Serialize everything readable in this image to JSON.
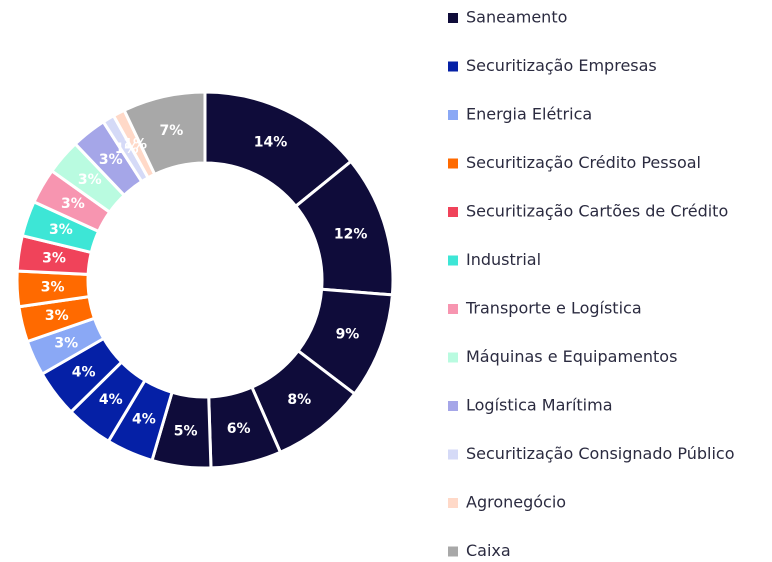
{
  "chart_data": {
    "type": "donut",
    "series": [
      {
        "name": "Saneamento",
        "color": "#0f0c3a",
        "values": [
          14,
          12,
          9,
          8,
          6,
          5
        ],
        "value_labels": [
          "14%",
          "12%",
          "9%",
          "8%",
          "6%",
          "5%"
        ]
      },
      {
        "name": "Securitização Empresas",
        "color": "#0520a6",
        "values": [
          4,
          4,
          4
        ],
        "value_labels": [
          "4%",
          "4%",
          "4%"
        ]
      },
      {
        "name": "Energia Elétrica",
        "color": "#8aa8f5",
        "values": [
          3
        ],
        "value_labels": [
          "3%"
        ]
      },
      {
        "name": "Securitização Crédito Pessoal",
        "color": "#ff6a00",
        "values": [
          3,
          3
        ],
        "value_labels": [
          "3%",
          "3%"
        ]
      },
      {
        "name": "Securitização Cartões de Crédito",
        "color": "#f0435a",
        "values": [
          3
        ],
        "value_labels": [
          "3%"
        ]
      },
      {
        "name": "Industrial",
        "color": "#3de6d6",
        "values": [
          3
        ],
        "value_labels": [
          "3%"
        ]
      },
      {
        "name": "Transporte e Logística",
        "color": "#f795b0",
        "values": [
          3
        ],
        "value_labels": [
          "3%"
        ]
      },
      {
        "name": "Máquinas e Equipamentos",
        "color": "#b9fbe0",
        "values": [
          3
        ],
        "value_labels": [
          "3%"
        ]
      },
      {
        "name": "Logística Marítima",
        "color": "#a5a6e8",
        "values": [
          3
        ],
        "value_labels": [
          "3%"
        ]
      },
      {
        "name": "Securitização Consignado Público",
        "color": "#d5daf7",
        "values": [
          1
        ],
        "value_labels": [
          "1%"
        ]
      },
      {
        "name": "Agronegócio",
        "color": "#ffd9c8",
        "values": [
          1
        ],
        "value_labels": [
          "1%"
        ]
      },
      {
        "name": "Caixa",
        "color": "#a8a8a8",
        "values": [
          7
        ],
        "value_labels": [
          "7%"
        ]
      }
    ]
  }
}
